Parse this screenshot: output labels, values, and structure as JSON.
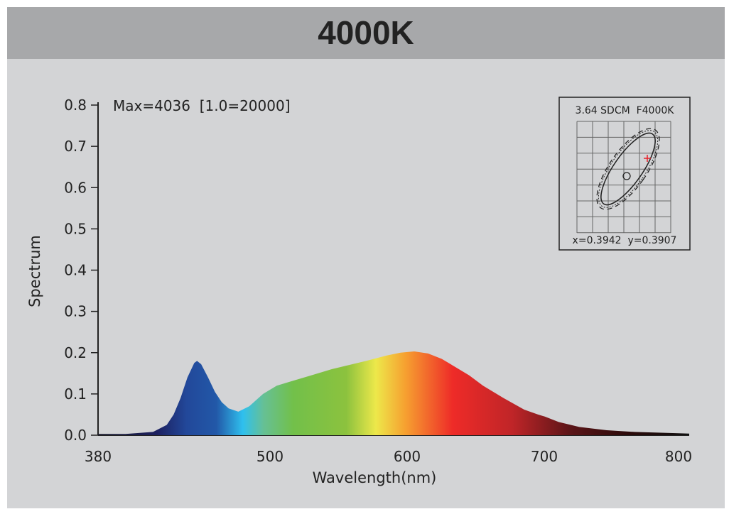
{
  "header": {
    "title": "4000K"
  },
  "chart_data": {
    "type": "area",
    "title": "4000K",
    "annotation": "Max=4036  [1.0=20000]",
    "xlabel": "Wavelength(nm)",
    "ylabel": "Spectrum",
    "xlim": [
      380,
      810
    ],
    "ylim": [
      0,
      0.8
    ],
    "xticks": [
      380,
      500,
      600,
      700,
      800
    ],
    "xtick_labels": [
      "380",
      "500",
      "600",
      "700",
      "800"
    ],
    "yticks": [
      0,
      0.1,
      0.2,
      0.3,
      0.4,
      0.5,
      0.6,
      0.7,
      0.8
    ],
    "ytick_labels": [
      "0.0",
      "0.1",
      "0.2",
      "0.3",
      "0.4",
      "0.5",
      "0.6",
      "0.7",
      "0.8"
    ],
    "x": [
      380,
      400,
      420,
      430,
      435,
      440,
      445,
      450,
      452,
      455,
      460,
      465,
      470,
      475,
      482,
      490,
      500,
      510,
      520,
      535,
      550,
      565,
      575,
      590,
      600,
      610,
      620,
      630,
      640,
      650,
      660,
      675,
      690,
      700,
      705,
      715,
      730,
      750,
      770,
      800,
      810
    ],
    "y": [
      0.003,
      0.003,
      0.008,
      0.025,
      0.05,
      0.09,
      0.14,
      0.175,
      0.18,
      0.172,
      0.14,
      0.105,
      0.08,
      0.065,
      0.057,
      0.07,
      0.1,
      0.12,
      0.13,
      0.145,
      0.16,
      0.172,
      0.18,
      0.193,
      0.2,
      0.203,
      0.198,
      0.185,
      0.165,
      0.145,
      0.12,
      0.09,
      0.062,
      0.05,
      0.045,
      0.032,
      0.02,
      0.012,
      0.008,
      0.005,
      0.004
    ],
    "inset": {
      "title": "3.64 SDCM  F4000K",
      "coords": "x=0.3942  y=0.3907"
    }
  }
}
